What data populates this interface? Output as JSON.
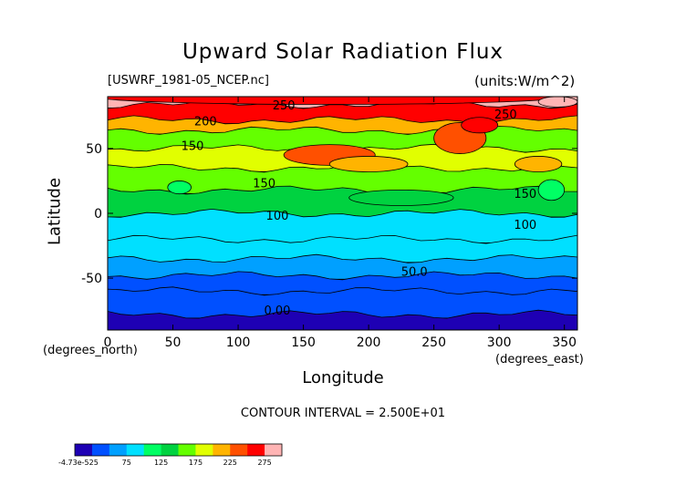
{
  "page": {
    "title": "Upward Solar Radiation Flux",
    "file_label": "[USWRF_1981-05_NCEP.nc]",
    "units_label": "(units:W/m^2)",
    "contour_interval": "CONTOUR INTERVAL = 2.500E+01"
  },
  "chart_data": {
    "type": "heatmap",
    "title": "Upward Solar Radiation Flux",
    "xlabel": "Longitude",
    "ylabel": "Latitude",
    "x_units": "(degrees_east)",
    "y_units": "(degrees_north)",
    "xlim": [
      0,
      360
    ],
    "ylim": [
      -90,
      90
    ],
    "x_ticks": [
      0,
      50,
      100,
      150,
      200,
      250,
      300,
      350
    ],
    "y_ticks": [
      -50,
      0,
      50
    ],
    "colorbar": {
      "tick_labels": [
        "-4.73e-525",
        "75",
        "125",
        "175",
        "225",
        "275"
      ],
      "tick_values": [
        0,
        75,
        125,
        175,
        225,
        275
      ],
      "range": [
        0,
        300
      ],
      "colors": [
        "#1e00b4",
        "#0050ff",
        "#00a0ff",
        "#00e0ff",
        "#00ff64",
        "#00d240",
        "#64ff00",
        "#e1ff00",
        "#ffb400",
        "#ff5000",
        "#ff0000",
        "#ffb4b4"
      ]
    },
    "contour_labels": [
      {
        "text": "250",
        "lon": 135,
        "lat": 80
      },
      {
        "text": "200",
        "lon": 75,
        "lat": 68
      },
      {
        "text": "150",
        "lon": 65,
        "lat": 49
      },
      {
        "text": "150",
        "lon": 120,
        "lat": 20
      },
      {
        "text": "100",
        "lon": 130,
        "lat": -5
      },
      {
        "text": "50.0",
        "lon": 235,
        "lat": -48
      },
      {
        "text": "0.00",
        "lon": 130,
        "lat": -78
      },
      {
        "text": "250",
        "lon": 305,
        "lat": 73
      },
      {
        "text": "150",
        "lon": 320,
        "lat": 12
      },
      {
        "text": "100",
        "lon": 320,
        "lat": -12
      }
    ],
    "bands": [
      {
        "lat_top": 90,
        "lat_bottom": 84,
        "value": 275
      },
      {
        "lat_top": 84,
        "lat_bottom": 72,
        "value": 262
      },
      {
        "lat_top": 72,
        "lat_bottom": 64,
        "value": 212
      },
      {
        "lat_top": 64,
        "lat_bottom": 50,
        "value": 150
      },
      {
        "lat_top": 50,
        "lat_bottom": 35,
        "value": 175
      },
      {
        "lat_top": 35,
        "lat_bottom": 18,
        "value": 150
      },
      {
        "lat_top": 18,
        "lat_bottom": 0,
        "value": 138
      },
      {
        "lat_top": 0,
        "lat_bottom": -20,
        "value": 90
      },
      {
        "lat_top": -20,
        "lat_bottom": -35,
        "value": 80
      },
      {
        "lat_top": -35,
        "lat_bottom": -48,
        "value": 62
      },
      {
        "lat_top": -48,
        "lat_bottom": -60,
        "value": 40
      },
      {
        "lat_top": -60,
        "lat_bottom": -78,
        "value": 25
      },
      {
        "lat_top": -78,
        "lat_bottom": -90,
        "value": 0
      }
    ],
    "patches": [
      {
        "lon": 55,
        "lat": 20,
        "rlon": 9,
        "rlat": 5,
        "value": 100
      },
      {
        "lon": 170,
        "lat": 45,
        "rlon": 35,
        "rlat": 8,
        "value": 225
      },
      {
        "lon": 200,
        "lat": 38,
        "rlon": 30,
        "rlat": 6,
        "value": 200
      },
      {
        "lon": 270,
        "lat": 58,
        "rlon": 20,
        "rlat": 12,
        "value": 225
      },
      {
        "lon": 285,
        "lat": 68,
        "rlon": 14,
        "rlat": 6,
        "value": 250
      },
      {
        "lon": 340,
        "lat": 18,
        "rlon": 10,
        "rlat": 8,
        "value": 110
      },
      {
        "lon": 330,
        "lat": 38,
        "rlon": 18,
        "rlat": 6,
        "value": 200
      },
      {
        "lon": 170,
        "lat": 90,
        "rlon": 180,
        "rlat": 6,
        "value": 262
      },
      {
        "lon": 345,
        "lat": 86,
        "rlon": 15,
        "rlat": 4,
        "value": 287
      },
      {
        "lon": 225,
        "lat": 12,
        "rlon": 40,
        "rlat": 6,
        "value": 125
      }
    ]
  }
}
